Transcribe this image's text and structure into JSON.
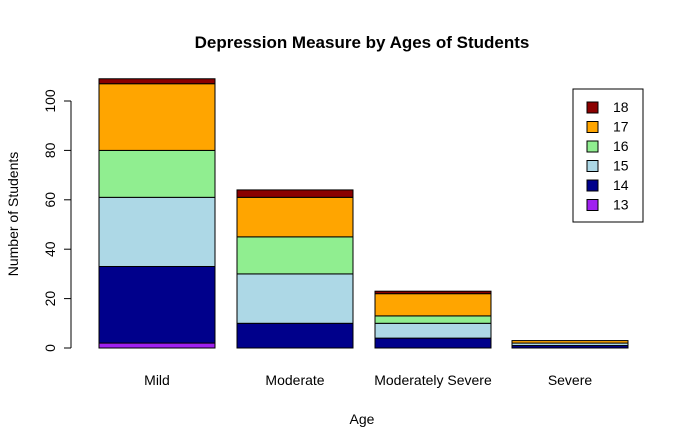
{
  "chart_data": {
    "type": "bar",
    "stacked": true,
    "title": "Depression Measure by Ages of Students",
    "xlabel": "Age",
    "ylabel": "Number of Students",
    "categories": [
      "Mild",
      "Moderate",
      "Moderately Severe",
      "Severe"
    ],
    "ylim": [
      0,
      109
    ],
    "yticks": [
      0,
      20,
      40,
      60,
      80,
      100
    ],
    "legend_position": "top-right",
    "legend_title": "",
    "series": [
      {
        "name": "13",
        "color": "#a020f0",
        "values": [
          2,
          0,
          0,
          0
        ]
      },
      {
        "name": "14",
        "color": "#00008b",
        "values": [
          31,
          10,
          4,
          1
        ]
      },
      {
        "name": "15",
        "color": "#add8e6",
        "values": [
          28,
          20,
          6,
          1
        ]
      },
      {
        "name": "16",
        "color": "#90ee90",
        "values": [
          19,
          15,
          3,
          0
        ]
      },
      {
        "name": "17",
        "color": "#ffa500",
        "values": [
          27,
          16,
          9,
          1
        ]
      },
      {
        "name": "18",
        "color": "#8b0000",
        "values": [
          2,
          3,
          1,
          0
        ]
      }
    ]
  }
}
